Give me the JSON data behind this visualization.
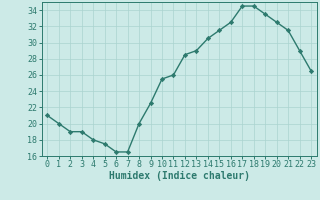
{
  "x": [
    0,
    1,
    2,
    3,
    4,
    5,
    6,
    7,
    8,
    9,
    10,
    11,
    12,
    13,
    14,
    15,
    16,
    17,
    18,
    19,
    20,
    21,
    22,
    23
  ],
  "y": [
    21,
    20,
    19,
    19,
    18,
    17.5,
    16.5,
    16.5,
    20,
    22.5,
    25.5,
    26,
    28.5,
    29,
    30.5,
    31.5,
    32.5,
    34.5,
    34.5,
    33.5,
    32.5,
    31.5,
    29,
    26.5
  ],
  "line_color": "#2d7a6e",
  "marker": "D",
  "marker_size": 2.2,
  "bg_color": "#cceae7",
  "grid_color": "#aad4d0",
  "xlabel": "Humidex (Indice chaleur)",
  "ylim": [
    16,
    35
  ],
  "yticks": [
    16,
    18,
    20,
    22,
    24,
    26,
    28,
    30,
    32,
    34
  ],
  "xticks": [
    0,
    1,
    2,
    3,
    4,
    5,
    6,
    7,
    8,
    9,
    10,
    11,
    12,
    13,
    14,
    15,
    16,
    17,
    18,
    19,
    20,
    21,
    22,
    23
  ],
  "tick_color": "#2d7a6e",
  "label_color": "#2d7a6e",
  "axis_color": "#2d7a6e",
  "xlabel_fontsize": 7,
  "tick_fontsize": 6,
  "linewidth": 1.0
}
